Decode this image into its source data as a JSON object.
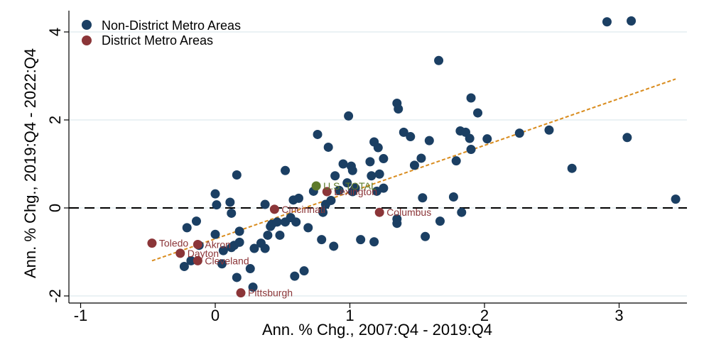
{
  "chart_data": {
    "type": "scatter",
    "xlabel": "Ann. % Chg., 2007:Q4 - 2019:Q4",
    "ylabel": "Ann. % Chg., 2019:Q4 - 2022:Q4",
    "xlim": [
      -1.05,
      3.5
    ],
    "ylim": [
      -2.2,
      4.5
    ],
    "xticks": [
      -1,
      0,
      1,
      2,
      3
    ],
    "yticks": [
      -2,
      0,
      2,
      4
    ],
    "xtick_labels": [
      "-1",
      "0",
      "1",
      "2",
      "3"
    ],
    "ytick_labels": [
      "-2",
      "0",
      "2",
      "4"
    ],
    "grid": "horizontal",
    "legend_position": "top-left",
    "reference_line_y": 0,
    "fit_line": {
      "x": [
        -0.47,
        3.42
      ],
      "y": [
        -1.2,
        2.93
      ],
      "color": "#d98c1e"
    },
    "series": [
      {
        "name": "Non-District Metro Areas",
        "color": "#1b3f63",
        "points": [
          [
            -0.23,
            -1.33
          ],
          [
            -0.21,
            -0.45
          ],
          [
            -0.18,
            -1.2
          ],
          [
            -0.14,
            -0.3
          ],
          [
            -0.12,
            -0.85
          ],
          [
            0.0,
            0.32
          ],
          [
            0.01,
            0.07
          ],
          [
            0.0,
            -0.6
          ],
          [
            0.05,
            -1.27
          ],
          [
            0.06,
            -0.97
          ],
          [
            0.11,
            0.13
          ],
          [
            0.12,
            -0.12
          ],
          [
            0.12,
            -0.9
          ],
          [
            0.14,
            -0.85
          ],
          [
            0.16,
            0.75
          ],
          [
            0.16,
            -1.58
          ],
          [
            0.18,
            -0.53
          ],
          [
            0.18,
            -0.78
          ],
          [
            0.26,
            -1.38
          ],
          [
            0.28,
            -1.8
          ],
          [
            0.29,
            -0.92
          ],
          [
            0.34,
            -0.8
          ],
          [
            0.37,
            0.08
          ],
          [
            0.37,
            -0.92
          ],
          [
            0.39,
            -0.62
          ],
          [
            0.41,
            -0.42
          ],
          [
            0.42,
            -0.37
          ],
          [
            0.46,
            -0.32
          ],
          [
            0.48,
            -0.62
          ],
          [
            0.52,
            0.85
          ],
          [
            0.52,
            -0.32
          ],
          [
            0.56,
            -0.22
          ],
          [
            0.58,
            0.18
          ],
          [
            0.59,
            -1.55
          ],
          [
            0.6,
            -0.32
          ],
          [
            0.62,
            0.22
          ],
          [
            0.66,
            -1.43
          ],
          [
            0.69,
            -0.45
          ],
          [
            0.73,
            0.38
          ],
          [
            0.76,
            1.67
          ],
          [
            0.79,
            -0.72
          ],
          [
            0.8,
            -0.1
          ],
          [
            0.82,
            0.08
          ],
          [
            0.84,
            1.38
          ],
          [
            0.86,
            0.17
          ],
          [
            0.88,
            -0.87
          ],
          [
            0.89,
            0.73
          ],
          [
            0.92,
            0.4
          ],
          [
            0.95,
            1.0
          ],
          [
            0.98,
            0.57
          ],
          [
            0.99,
            2.09
          ],
          [
            1.01,
            0.95
          ],
          [
            1.02,
            0.85
          ],
          [
            1.02,
            0.37
          ],
          [
            1.04,
            0.45
          ],
          [
            1.08,
            -0.72
          ],
          [
            1.15,
            1.05
          ],
          [
            1.16,
            0.73
          ],
          [
            1.18,
            -0.77
          ],
          [
            1.18,
            1.5
          ],
          [
            1.2,
            0.38
          ],
          [
            1.21,
            1.37
          ],
          [
            1.22,
            0.77
          ],
          [
            1.25,
            0.45
          ],
          [
            1.25,
            1.12
          ],
          [
            1.35,
            -0.35
          ],
          [
            1.35,
            -0.25
          ],
          [
            1.35,
            2.38
          ],
          [
            1.36,
            2.25
          ],
          [
            1.4,
            1.72
          ],
          [
            1.45,
            1.62
          ],
          [
            1.48,
            0.97
          ],
          [
            1.53,
            1.13
          ],
          [
            1.54,
            0.23
          ],
          [
            1.56,
            -0.65
          ],
          [
            1.59,
            1.53
          ],
          [
            1.66,
            3.35
          ],
          [
            1.67,
            -0.3
          ],
          [
            1.77,
            0.25
          ],
          [
            1.79,
            1.07
          ],
          [
            1.82,
            1.75
          ],
          [
            1.83,
            -0.1
          ],
          [
            1.86,
            1.72
          ],
          [
            1.89,
            1.58
          ],
          [
            1.9,
            1.33
          ],
          [
            1.9,
            2.5
          ],
          [
            1.95,
            2.16
          ],
          [
            2.02,
            1.57
          ],
          [
            2.26,
            1.7
          ],
          [
            2.48,
            1.77
          ],
          [
            2.65,
            0.9
          ],
          [
            2.91,
            4.23
          ],
          [
            3.06,
            1.6
          ],
          [
            3.09,
            4.25
          ],
          [
            3.42,
            0.2
          ]
        ]
      },
      {
        "name": "District Metro Areas",
        "color": "#8b3538",
        "points": [
          {
            "x": -0.47,
            "y": -0.8,
            "label": "Toledo"
          },
          {
            "x": -0.13,
            "y": -0.83,
            "label": "Akron"
          },
          {
            "x": -0.26,
            "y": -1.03,
            "label": "Dayton"
          },
          {
            "x": -0.13,
            "y": -1.2,
            "label": "Cleveland"
          },
          {
            "x": 0.19,
            "y": -1.93,
            "label": "Pittsburgh"
          },
          {
            "x": 0.44,
            "y": -0.03,
            "label": "Cincinnati"
          },
          {
            "x": 0.83,
            "y": 0.37,
            "label": "Lexington"
          },
          {
            "x": 1.22,
            "y": -0.1,
            "label": "Columbus"
          }
        ]
      },
      {
        "name": "",
        "color": "#5e7a2a",
        "points": [
          {
            "x": 0.75,
            "y": 0.5,
            "label": "U.S. TOTAL"
          }
        ]
      }
    ]
  }
}
